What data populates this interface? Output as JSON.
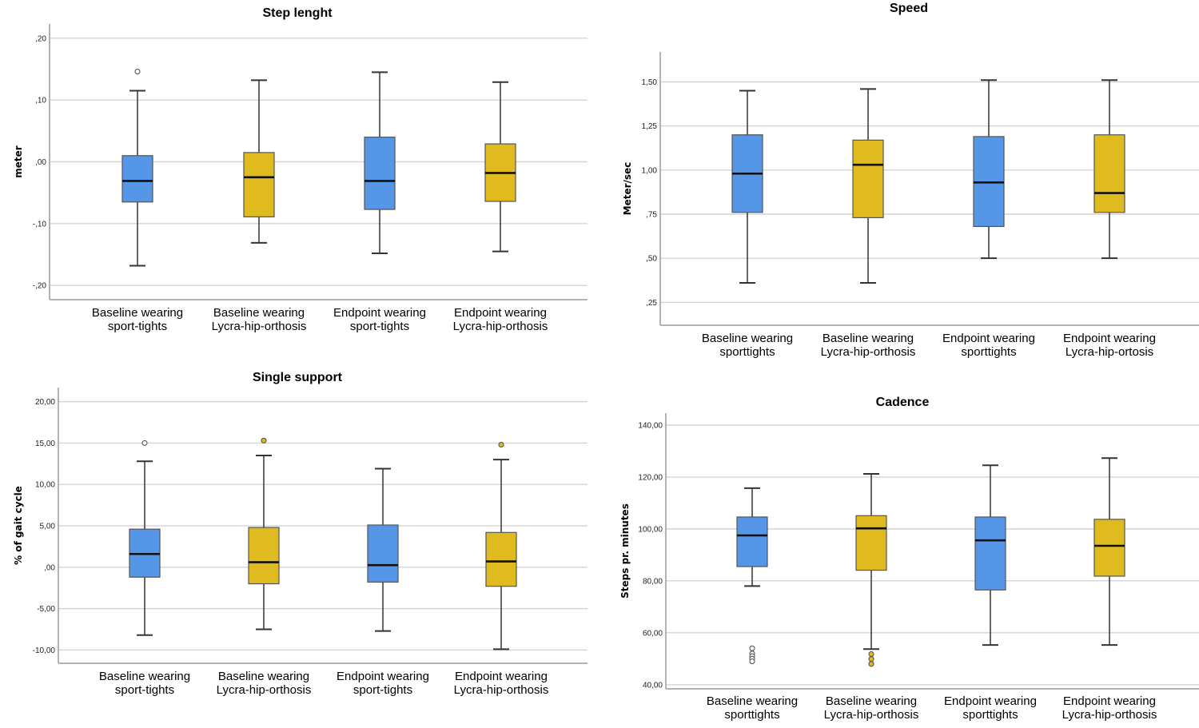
{
  "colors": {
    "sport_tights": "#5596E6",
    "lycra": "#E0BB1F",
    "outline": "#555555"
  },
  "chart_data": [
    {
      "id": "step-length",
      "type": "box",
      "title": "Step lenght",
      "xlabel": "",
      "ylabel": "meter",
      "ylim": [
        -0.223,
        0.223
      ],
      "yticks": [
        0.2,
        0.1,
        0.0,
        -0.1,
        -0.2
      ],
      "ytick_labels": [
        ",20",
        ",10",
        ",00",
        "-,10",
        "-,20"
      ],
      "grid": true,
      "categories": [
        [
          "Baseline wearing",
          "sport-tights"
        ],
        [
          "Baseline wearing",
          "Lycra-hip-orthosis"
        ],
        [
          "Endpoint wearing",
          "sport-tights"
        ],
        [
          "Endpoint wearing",
          "Lycra-hip-orthosis"
        ]
      ],
      "groups": [
        "sport_tights",
        "lycra",
        "sport_tights",
        "lycra"
      ],
      "boxes": [
        {
          "whisker_low": -0.168,
          "q1": -0.065,
          "median": -0.031,
          "q3": 0.01,
          "whisker_high": 0.115,
          "outliers": [
            0.146
          ]
        },
        {
          "whisker_low": -0.131,
          "q1": -0.089,
          "median": -0.025,
          "q3": 0.015,
          "whisker_high": 0.132,
          "outliers": []
        },
        {
          "whisker_low": -0.148,
          "q1": -0.077,
          "median": -0.031,
          "q3": 0.04,
          "whisker_high": 0.145,
          "outliers": []
        },
        {
          "whisker_low": -0.145,
          "q1": -0.064,
          "median": -0.018,
          "q3": 0.029,
          "whisker_high": 0.129,
          "outliers": []
        }
      ]
    },
    {
      "id": "speed",
      "type": "box",
      "title": "Speed",
      "xlabel": "",
      "ylabel": "Meter/sec",
      "ylim": [
        0.12,
        1.67
      ],
      "yticks": [
        1.5,
        1.25,
        1.0,
        0.75,
        0.5,
        0.25
      ],
      "ytick_labels": [
        "1,50",
        "1,25",
        "1,00",
        ",75",
        ",50",
        ",25"
      ],
      "grid": true,
      "categories": [
        [
          "Baseline wearing",
          "sporttights"
        ],
        [
          "Baseline wearing",
          "Lycra-hip-orthosis"
        ],
        [
          "Endpoint wearing",
          "sporttights"
        ],
        [
          "Endpoint wearing",
          "Lycra-hip-ortosis"
        ]
      ],
      "groups": [
        "sport_tights",
        "lycra",
        "sport_tights",
        "lycra"
      ],
      "boxes": [
        {
          "whisker_low": 0.36,
          "q1": 0.76,
          "median": 0.98,
          "q3": 1.2,
          "whisker_high": 1.45,
          "outliers": []
        },
        {
          "whisker_low": 0.36,
          "q1": 0.73,
          "median": 1.03,
          "q3": 1.17,
          "whisker_high": 1.46,
          "outliers": []
        },
        {
          "whisker_low": 0.5,
          "q1": 0.68,
          "median": 0.93,
          "q3": 1.19,
          "whisker_high": 1.51,
          "outliers": []
        },
        {
          "whisker_low": 0.5,
          "q1": 0.76,
          "median": 0.87,
          "q3": 1.2,
          "whisker_high": 1.51,
          "outliers": []
        }
      ]
    },
    {
      "id": "single-support",
      "type": "box",
      "title": "Single support",
      "xlabel": "",
      "ylabel": "% of gait cycle",
      "ylim": [
        -11.6,
        21.7
      ],
      "yticks": [
        20,
        15,
        10,
        5,
        0,
        -5,
        -10
      ],
      "ytick_labels": [
        "20,00",
        "15,00",
        "10,00",
        "5,00",
        ",00",
        "-5,00",
        "-10,00"
      ],
      "grid": true,
      "categories": [
        [
          "Baseline wearing",
          "sport-tights"
        ],
        [
          "Baseline wearing",
          "Lycra-hip-orthosis"
        ],
        [
          "Endpoint wearing",
          "sport-tights"
        ],
        [
          "Endpoint wearing",
          "Lycra-hip-orthosis"
        ]
      ],
      "groups": [
        "sport_tights",
        "lycra",
        "sport_tights",
        "lycra"
      ],
      "boxes": [
        {
          "whisker_low": -8.2,
          "q1": -1.2,
          "median": 1.6,
          "q3": 4.6,
          "whisker_high": 12.8,
          "outliers": [
            15.0
          ]
        },
        {
          "whisker_low": -7.5,
          "q1": -2.0,
          "median": 0.6,
          "q3": 4.8,
          "whisker_high": 13.5,
          "outliers": [
            15.3
          ]
        },
        {
          "whisker_low": -7.7,
          "q1": -1.8,
          "median": 0.25,
          "q3": 5.1,
          "whisker_high": 11.9,
          "outliers": []
        },
        {
          "whisker_low": -9.9,
          "q1": -2.3,
          "median": 0.7,
          "q3": 4.2,
          "whisker_high": 13.0,
          "outliers": [
            14.8
          ]
        }
      ]
    },
    {
      "id": "cadence",
      "type": "box",
      "title": "Cadence",
      "xlabel": "",
      "ylabel": "Steps pr. minutes",
      "ylim": [
        38.4,
        144.6
      ],
      "yticks": [
        140,
        120,
        100,
        80,
        60,
        40
      ],
      "ytick_labels": [
        "140,00",
        "120,00",
        "100,00",
        "80,00",
        "60,00",
        "40,00"
      ],
      "grid": true,
      "categories": [
        [
          "Baseline wearing",
          "sporttights"
        ],
        [
          "Baseline wearing",
          "Lycra-hip-orthosis"
        ],
        [
          "Endpoint wearing",
          "sporttights"
        ],
        [
          "Endpoint wearing",
          "Lycra-hip-orthosis"
        ]
      ],
      "groups": [
        "sport_tights",
        "lycra",
        "sport_tights",
        "lycra"
      ],
      "boxes": [
        {
          "whisker_low": 78.0,
          "q1": 85.5,
          "median": 97.5,
          "q3": 104.6,
          "whisker_high": 115.7,
          "outliers": [
            54.0,
            52.0,
            51.0,
            50.0,
            49.0
          ]
        },
        {
          "whisker_low": 53.7,
          "q1": 84.1,
          "median": 100.2,
          "q3": 105.1,
          "whisker_high": 121.2,
          "outliers": [
            51.8,
            49.9,
            48.0
          ]
        },
        {
          "whisker_low": 55.3,
          "q1": 76.5,
          "median": 95.6,
          "q3": 104.6,
          "whisker_high": 124.5,
          "outliers": []
        },
        {
          "whisker_low": 55.3,
          "q1": 81.8,
          "median": 93.5,
          "q3": 103.7,
          "whisker_high": 127.3,
          "outliers": []
        }
      ]
    }
  ]
}
